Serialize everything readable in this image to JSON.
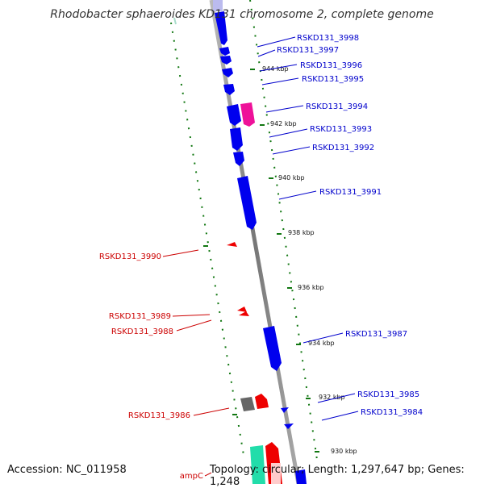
{
  "title": "Rhodobacter sphaeroides KD131 chromosome 2, complete genome",
  "footer": {
    "accession": "Accession: NC_011958",
    "summary": "Topology: circular; Length: 1,297,647 bp; Genes: 1,248"
  },
  "colors": {
    "forward_gene": "#0000ee",
    "reverse_gene": "#ee0000",
    "pink_gene": "#ee1199",
    "gray_gene": "#666666",
    "teal_gene": "#22ddaa",
    "forward_label": "#0000cc",
    "reverse_label": "#cc0000",
    "tick": "#117711",
    "backbone": "#888888"
  },
  "scale": {
    "ticks": [
      {
        "label": "944 kbp"
      },
      {
        "label": "942 kbp"
      },
      {
        "label": "940 kbp"
      },
      {
        "label": "938 kbp"
      },
      {
        "label": "936 kbp"
      },
      {
        "label": "934 kbp"
      },
      {
        "label": "932 kbp"
      },
      {
        "label": "930 kbp"
      }
    ]
  },
  "forward_genes": [
    {
      "label": "RSKD131_3998"
    },
    {
      "label": "RSKD131_3997"
    },
    {
      "label": "RSKD131_3996"
    },
    {
      "label": "RSKD131_3995"
    },
    {
      "label": "RSKD131_3994"
    },
    {
      "label": "RSKD131_3993"
    },
    {
      "label": "RSKD131_3992"
    },
    {
      "label": "RSKD131_3991"
    },
    {
      "label": "RSKD131_3987"
    },
    {
      "label": "RSKD131_3985"
    },
    {
      "label": "RSKD131_3984"
    }
  ],
  "reverse_genes": [
    {
      "label": "RSKD131_3990"
    },
    {
      "label": "RSKD131_3989"
    },
    {
      "label": "RSKD131_3988"
    },
    {
      "label": "RSKD131_3986"
    },
    {
      "label": "ampC"
    }
  ]
}
